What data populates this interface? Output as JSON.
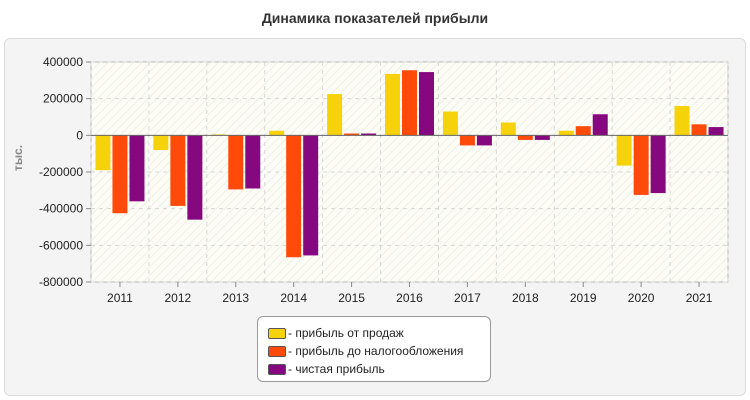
{
  "chart_data": {
    "type": "bar",
    "title": "Динамика показателей прибыли",
    "ylabel": "тыс.",
    "xlabel": "",
    "ylim": [
      -800000,
      400000
    ],
    "yticks": [
      400000,
      200000,
      0,
      -200000,
      -400000,
      -600000,
      -800000
    ],
    "ytick_labels": [
      "400000",
      "200000",
      "0",
      "-200000",
      "-400000",
      "-600000",
      "-800000"
    ],
    "categories": [
      "2011",
      "2012",
      "2013",
      "2014",
      "2015",
      "2016",
      "2017",
      "2018",
      "2019",
      "2020",
      "2021"
    ],
    "series": [
      {
        "name": "- прибыль от продаж",
        "color": "#f5d20a",
        "values": [
          -190000,
          -80000,
          5000,
          25000,
          225000,
          335000,
          130000,
          70000,
          25000,
          -165000,
          160000
        ]
      },
      {
        "name": "- прибыль до налогообложения",
        "color": "#ff4a0a",
        "values": [
          -425000,
          -385000,
          -295000,
          -665000,
          10000,
          355000,
          -55000,
          -25000,
          50000,
          -325000,
          60000
        ]
      },
      {
        "name": "- чистая прибыль",
        "color": "#85087f",
        "values": [
          -360000,
          -460000,
          -290000,
          -655000,
          10000,
          345000,
          -55000,
          -25000,
          115000,
          -315000,
          45000
        ]
      }
    ],
    "grid": true,
    "legend_position": "bottom"
  }
}
